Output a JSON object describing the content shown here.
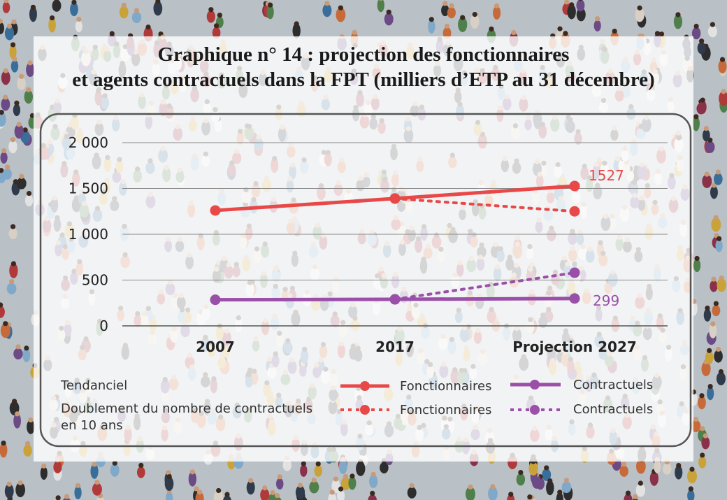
{
  "title_line1": "Graphique n° 14 : projection des fonctionnaires",
  "title_line2": "et agents contractuels dans la FPT (milliers d’ETP au 31 décembre)",
  "colors": {
    "fonctionnaires": "#e84848",
    "contractuels": "#9a4fa8",
    "frame": "#555555",
    "grid": "#8a8a8a"
  },
  "legend": {
    "row1_label": "Tendanciel",
    "row2_label_line1": "Doublement du nombre de contractuels",
    "row2_label_line2": "en 10 ans",
    "fonctionnaires": "Fonctionnaires",
    "contractuels": "Contractuels"
  },
  "end_labels": {
    "fonctionnaires": "1527",
    "contractuels": "299"
  },
  "chart_data": {
    "type": "line",
    "x": [
      "2007",
      "2017",
      "Projection 2027"
    ],
    "y_ticks": [
      "0",
      "500",
      "1 000",
      "1 500",
      "2 000"
    ],
    "ylim": [
      0,
      2000
    ],
    "grid": true,
    "legend_position": "bottom",
    "series": [
      {
        "name": "Fonctionnaires",
        "scenario": "Tendanciel",
        "style": "solid",
        "color_key": "fonctionnaires",
        "values": [
          1260,
          1390,
          1527
        ]
      },
      {
        "name": "Fonctionnaires",
        "scenario": "Doublement du nombre de contractuels en 10 ans",
        "style": "dotted",
        "color_key": "fonctionnaires",
        "values": [
          null,
          1390,
          1250
        ]
      },
      {
        "name": "Contractuels",
        "scenario": "Tendanciel",
        "style": "solid",
        "color_key": "contractuels",
        "values": [
          285,
          290,
          299
        ]
      },
      {
        "name": "Contractuels",
        "scenario": "Doublement du nombre de contractuels en 10 ans",
        "style": "dotted",
        "color_key": "contractuels",
        "values": [
          null,
          290,
          580
        ]
      }
    ]
  }
}
